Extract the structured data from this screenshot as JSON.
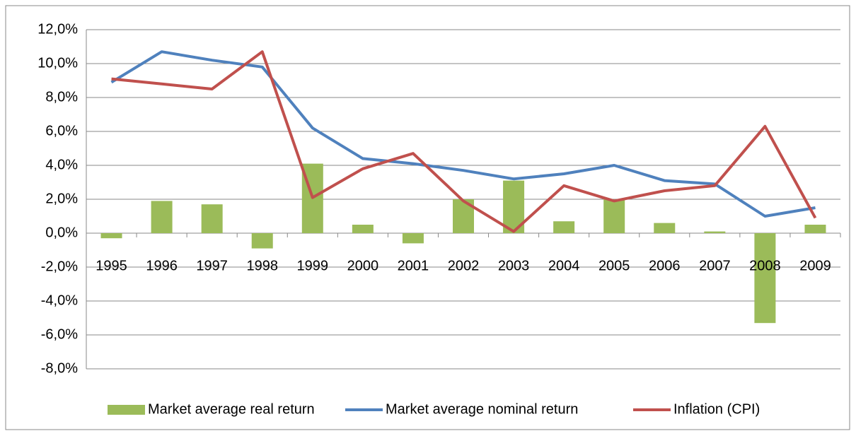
{
  "chart_data": {
    "type": "combo",
    "categories": [
      "1995",
      "1996",
      "1997",
      "1998",
      "1999",
      "2000",
      "2001",
      "2002",
      "2003",
      "2004",
      "2005",
      "2006",
      "2007",
      "2008",
      "2009"
    ],
    "series": [
      {
        "name": "Market average real return",
        "type": "bar",
        "color": "#9bbb59",
        "values": [
          -0.3,
          1.9,
          1.7,
          -0.9,
          4.1,
          0.5,
          -0.6,
          2.0,
          3.1,
          0.7,
          2.0,
          0.6,
          0.1,
          -5.3,
          0.5
        ]
      },
      {
        "name": "Market average nominal return",
        "type": "line",
        "color": "#4f81bd",
        "values": [
          8.9,
          10.7,
          10.2,
          9.8,
          6.2,
          4.4,
          4.1,
          3.7,
          3.2,
          3.5,
          4.0,
          3.1,
          2.9,
          1.0,
          1.5
        ]
      },
      {
        "name": "Inflation (CPI)",
        "type": "line",
        "color": "#c0504d",
        "values": [
          9.1,
          8.8,
          8.5,
          10.7,
          2.1,
          3.8,
          4.7,
          1.9,
          0.1,
          2.8,
          1.9,
          2.5,
          2.8,
          6.3,
          0.9
        ]
      }
    ],
    "ylim": [
      -8,
      12
    ],
    "yticks": [
      {
        "value": -8,
        "label": "-8,0%"
      },
      {
        "value": -6,
        "label": "-6,0%"
      },
      {
        "value": -4,
        "label": "-4,0%"
      },
      {
        "value": -2,
        "label": "-2,0%"
      },
      {
        "value": 0,
        "label": "0,0%"
      },
      {
        "value": 2,
        "label": "2,0%"
      },
      {
        "value": 4,
        "label": "4,0%"
      },
      {
        "value": 6,
        "label": "6,0%"
      },
      {
        "value": 8,
        "label": "8,0%"
      },
      {
        "value": 10,
        "label": "10,0%"
      },
      {
        "value": 12,
        "label": "12,0%"
      }
    ],
    "grid": true,
    "legend": "bottom"
  }
}
